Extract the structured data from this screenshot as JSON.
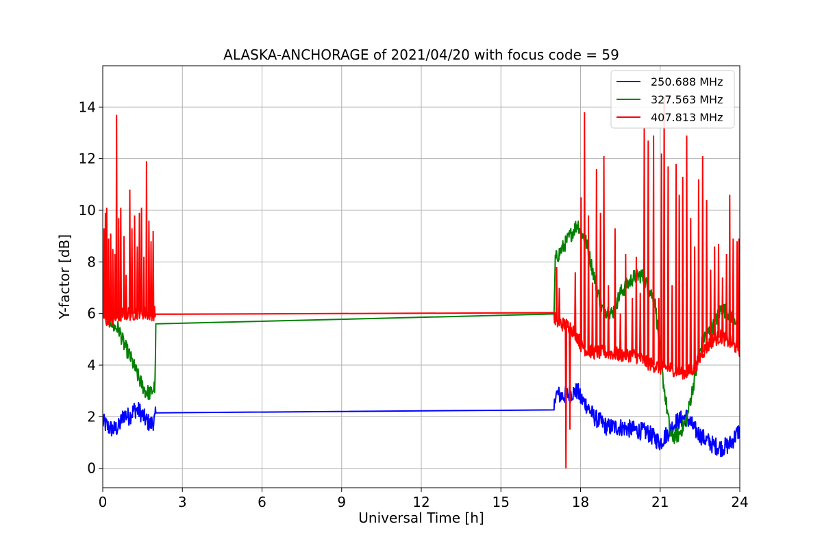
{
  "chart_data": {
    "type": "line",
    "title": "ALASKA-ANCHORAGE of 2021/04/20 with focus code = 59",
    "xlabel": "Universal Time [h]",
    "ylabel": "Y-factor [dB]",
    "xlim": [
      0,
      24
    ],
    "ylim": [
      -0.75,
      15.6
    ],
    "xticks": [
      0,
      3,
      6,
      9,
      12,
      15,
      18,
      21,
      24
    ],
    "xtick_labels": [
      "0",
      "3",
      "6",
      "9",
      "12",
      "15",
      "18",
      "21",
      "24"
    ],
    "yticks": [
      0,
      2,
      4,
      6,
      8,
      10,
      12,
      14
    ],
    "ytick_labels": [
      "0",
      "2",
      "4",
      "6",
      "8",
      "10",
      "12",
      "14"
    ],
    "grid": true,
    "legend_position": "top-right",
    "series": [
      {
        "name": "250.688 MHz",
        "color": "#0000ff",
        "noise": 0.35,
        "x": [
          0,
          0.2,
          0.4,
          0.6,
          0.8,
          1.0,
          1.2,
          1.4,
          1.6,
          1.8,
          1.97,
          2.0,
          17.0,
          17.05,
          17.3,
          17.6,
          17.9,
          18.0,
          18.2,
          18.5,
          19.0,
          19.5,
          20.0,
          20.5,
          21.0,
          21.3,
          21.6,
          22.0,
          22.3,
          22.6,
          23.0,
          23.3,
          23.6,
          24.0
        ],
        "y": [
          1.8,
          1.6,
          1.5,
          1.6,
          2.1,
          2.0,
          2.3,
          2.2,
          1.9,
          1.7,
          1.9,
          2.15,
          2.2,
          2.9,
          2.8,
          2.9,
          3.0,
          2.7,
          2.5,
          2.0,
          1.6,
          1.6,
          1.5,
          1.4,
          1.0,
          1.4,
          1.8,
          2.0,
          1.5,
          1.2,
          0.9,
          0.8,
          0.9,
          1.5
        ]
      },
      {
        "name": "327.563 MHz",
        "color": "#008000",
        "noise": 0.3,
        "x": [
          0,
          0.2,
          0.4,
          0.6,
          0.8,
          1.0,
          1.2,
          1.4,
          1.6,
          1.8,
          1.97,
          2.0,
          17.0,
          17.05,
          17.3,
          17.6,
          17.9,
          18.0,
          18.2,
          18.5,
          18.8,
          19.2,
          19.5,
          20.0,
          20.3,
          20.8,
          21.1,
          21.4,
          21.7,
          22.0,
          22.3,
          22.6,
          23.0,
          23.3,
          23.6,
          24.0
        ],
        "y": [
          6.5,
          6.0,
          5.5,
          5.4,
          4.8,
          4.4,
          3.9,
          3.4,
          3.0,
          2.9,
          3.2,
          5.6,
          5.75,
          8.1,
          8.5,
          9.0,
          9.5,
          9.2,
          8.8,
          7.5,
          6.2,
          6.0,
          6.8,
          7.4,
          7.5,
          6.5,
          3.5,
          1.2,
          1.3,
          1.9,
          3.5,
          5.0,
          5.5,
          6.2,
          6.0,
          5.6
        ]
      },
      {
        "name": "407.813 MHz",
        "color": "#ff0000",
        "noise": 0.28,
        "x": [
          0,
          0.2,
          0.4,
          0.6,
          0.8,
          1.0,
          1.2,
          1.4,
          1.6,
          1.8,
          1.97,
          2.0,
          17.0,
          17.05,
          17.3,
          17.6,
          17.9,
          18.0,
          18.2,
          18.5,
          19.0,
          19.5,
          20.0,
          20.5,
          21.0,
          21.3,
          21.6,
          22.0,
          22.3,
          22.6,
          23.0,
          23.3,
          23.6,
          24.0
        ],
        "y": [
          5.9,
          5.7,
          5.8,
          5.9,
          6.0,
          6.0,
          6.0,
          6.1,
          6.0,
          6.0,
          6.0,
          5.97,
          5.97,
          5.7,
          5.6,
          5.5,
          5.1,
          4.8,
          4.6,
          4.5,
          4.5,
          4.4,
          4.4,
          4.1,
          3.9,
          3.9,
          3.8,
          3.7,
          3.9,
          4.5,
          5.0,
          5.1,
          4.9,
          4.6
        ],
        "spikes": [
          {
            "x": 0.05,
            "y": 9.3
          },
          {
            "x": 0.1,
            "y": 9.9
          },
          {
            "x": 0.15,
            "y": 10.1
          },
          {
            "x": 0.22,
            "y": 8.9
          },
          {
            "x": 0.3,
            "y": 9.1
          },
          {
            "x": 0.38,
            "y": 8.5
          },
          {
            "x": 0.46,
            "y": 8.3
          },
          {
            "x": 0.52,
            "y": 13.7
          },
          {
            "x": 0.6,
            "y": 9.7
          },
          {
            "x": 0.68,
            "y": 10.1
          },
          {
            "x": 0.8,
            "y": 9.0
          },
          {
            "x": 0.88,
            "y": 7.5
          },
          {
            "x": 1.02,
            "y": 10.8
          },
          {
            "x": 1.1,
            "y": 9.3
          },
          {
            "x": 1.2,
            "y": 9.8
          },
          {
            "x": 1.3,
            "y": 8.6
          },
          {
            "x": 1.38,
            "y": 9.9
          },
          {
            "x": 1.46,
            "y": 10.1
          },
          {
            "x": 1.55,
            "y": 8.2
          },
          {
            "x": 1.65,
            "y": 11.9
          },
          {
            "x": 1.74,
            "y": 9.6
          },
          {
            "x": 1.82,
            "y": 8.8
          },
          {
            "x": 1.9,
            "y": 9.2
          },
          {
            "x": 17.1,
            "y": 7.8
          },
          {
            "x": 17.2,
            "y": 7.0
          },
          {
            "x": 17.45,
            "y": 0.0
          },
          {
            "x": 17.6,
            "y": 1.5
          },
          {
            "x": 17.8,
            "y": 7.6
          },
          {
            "x": 18.02,
            "y": 10.5
          },
          {
            "x": 18.15,
            "y": 13.8
          },
          {
            "x": 18.3,
            "y": 9.8
          },
          {
            "x": 18.45,
            "y": 7.2
          },
          {
            "x": 18.6,
            "y": 11.6
          },
          {
            "x": 18.75,
            "y": 9.9
          },
          {
            "x": 18.88,
            "y": 12.1
          },
          {
            "x": 19.05,
            "y": 7.1
          },
          {
            "x": 19.3,
            "y": 9.3
          },
          {
            "x": 19.5,
            "y": 6.0
          },
          {
            "x": 19.7,
            "y": 8.3
          },
          {
            "x": 19.95,
            "y": 6.6
          },
          {
            "x": 20.1,
            "y": 8.2
          },
          {
            "x": 20.25,
            "y": 6.8
          },
          {
            "x": 20.4,
            "y": 13.2
          },
          {
            "x": 20.55,
            "y": 12.7
          },
          {
            "x": 20.75,
            "y": 12.9
          },
          {
            "x": 20.95,
            "y": 6.6
          },
          {
            "x": 21.05,
            "y": 12.2
          },
          {
            "x": 21.15,
            "y": 14.4
          },
          {
            "x": 21.3,
            "y": 11.7
          },
          {
            "x": 21.45,
            "y": 7.1
          },
          {
            "x": 21.6,
            "y": 11.8
          },
          {
            "x": 21.72,
            "y": 10.6
          },
          {
            "x": 21.85,
            "y": 11.3
          },
          {
            "x": 22.0,
            "y": 12.9
          },
          {
            "x": 22.15,
            "y": 9.7
          },
          {
            "x": 22.3,
            "y": 8.6
          },
          {
            "x": 22.45,
            "y": 11.2
          },
          {
            "x": 22.6,
            "y": 12.1
          },
          {
            "x": 22.75,
            "y": 10.4
          },
          {
            "x": 22.9,
            "y": 7.7
          },
          {
            "x": 23.05,
            "y": 8.6
          },
          {
            "x": 23.2,
            "y": 8.7
          },
          {
            "x": 23.35,
            "y": 7.4
          },
          {
            "x": 23.5,
            "y": 8.3
          },
          {
            "x": 23.62,
            "y": 10.6
          },
          {
            "x": 23.75,
            "y": 8.9
          },
          {
            "x": 23.9,
            "y": 8.8
          },
          {
            "x": 23.97,
            "y": 8.9
          }
        ]
      }
    ]
  }
}
